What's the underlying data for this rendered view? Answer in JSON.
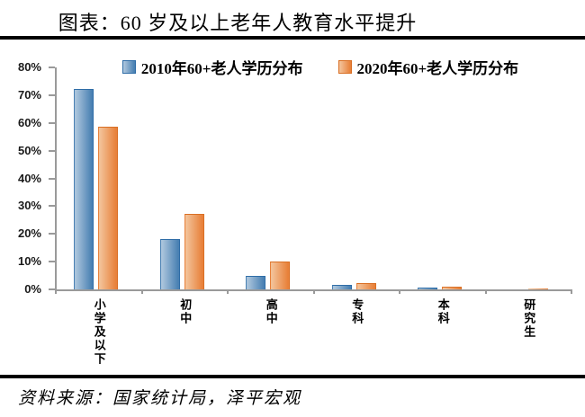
{
  "page": {
    "title": "图表：60 岁及以上老年人教育水平提升",
    "source": "资料来源：国家统计局，泽平宏观"
  },
  "chart_data": {
    "type": "bar",
    "title": "图表：60 岁及以上老年人教育水平提升",
    "categories": [
      "小学及以下",
      "初中",
      "高中",
      "专科",
      "本科",
      "研究生"
    ],
    "series": [
      {
        "name": "2010年60+老人学历分布",
        "color_light": "#a9c3db",
        "color": "#4a81b3",
        "edge": "#2f6da7",
        "values": [
          72.1,
          18.0,
          5.0,
          1.5,
          0.8,
          0.1
        ]
      },
      {
        "name": "2020年60+老人学历分布",
        "color_light": "#f2c096",
        "color": "#e8813a",
        "edge": "#d96f24",
        "values": [
          58.8,
          27.3,
          9.9,
          2.2,
          1.1,
          0.2
        ]
      }
    ],
    "xlabel": "",
    "ylabel": "",
    "ylim": [
      0,
      80
    ],
    "yticks": [
      "0%",
      "10%",
      "20%",
      "30%",
      "40%",
      "50%",
      "60%",
      "70%",
      "80%"
    ],
    "grid": false,
    "legend_position": "top"
  },
  "colors": {
    "axis": "#9a9a9a",
    "rule": "#000000",
    "text": "#000000"
  }
}
